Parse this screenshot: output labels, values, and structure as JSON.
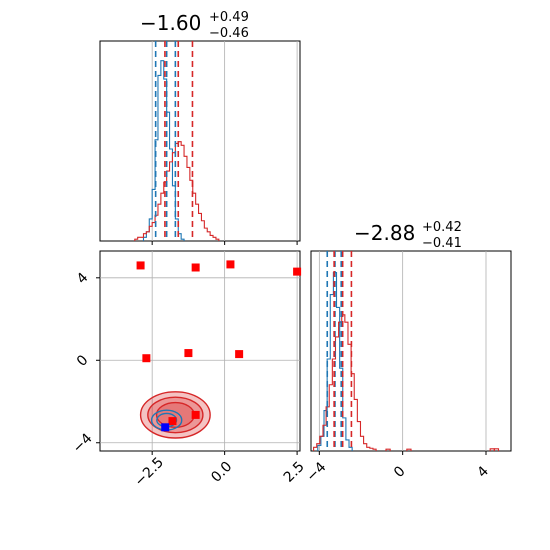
{
  "colors": {
    "series_a": "#1f77b4",
    "series_b": "#d62728",
    "marker": "#ff0000",
    "truth_marker": "#0000ff",
    "grid": "#b0b0b0"
  },
  "chart_data": [
    {
      "type": "histogram",
      "panel": "top-left",
      "title": {
        "value": "−1.60",
        "sup": "+0.49",
        "sub": "−0.46"
      },
      "xlim": [
        -4.3,
        2.6
      ],
      "xticks": [
        -2.5,
        0.0,
        2.5
      ],
      "grid": true,
      "quantile_lines": {
        "series_a": [
          -2.38,
          -2.0,
          -1.7
        ],
        "series_b": [
          -2.06,
          -1.6,
          -1.11
        ]
      },
      "series": [
        {
          "color_key": "series_a",
          "bin_width": 0.1,
          "x": [
            -2.75,
            -2.65,
            -2.55,
            -2.45,
            -2.35,
            -2.25,
            -2.15,
            -2.05,
            -1.95,
            -1.85,
            -1.75,
            -1.65,
            -1.55,
            -1.45
          ],
          "density": [
            0.02,
            0.05,
            0.12,
            0.28,
            0.55,
            0.9,
            0.98,
            0.88,
            0.7,
            0.5,
            0.3,
            0.12,
            0.04,
            0.01
          ]
        },
        {
          "color_key": "series_b",
          "bin_width": 0.1,
          "x": [
            -3.05,
            -2.95,
            -2.85,
            -2.75,
            -2.65,
            -2.55,
            -2.45,
            -2.35,
            -2.25,
            -2.15,
            -2.05,
            -1.95,
            -1.85,
            -1.75,
            -1.65,
            -1.55,
            -1.45,
            -1.35,
            -1.25,
            -1.15,
            -1.05,
            -0.95,
            -0.85,
            -0.75,
            -0.65,
            -0.55,
            -0.45,
            -0.35,
            -0.25
          ],
          "density": [
            0.01,
            0.02,
            0.02,
            0.04,
            0.05,
            0.08,
            0.1,
            0.14,
            0.2,
            0.26,
            0.32,
            0.38,
            0.43,
            0.48,
            0.53,
            0.54,
            0.52,
            0.46,
            0.4,
            0.33,
            0.26,
            0.2,
            0.15,
            0.11,
            0.07,
            0.05,
            0.03,
            0.02,
            0.01
          ]
        }
      ]
    },
    {
      "type": "scatter",
      "panel": "bottom-left",
      "xlim": [
        -4.3,
        2.6
      ],
      "ylim": [
        -4.4,
        5.3
      ],
      "xticks": [
        -2.5,
        0.0,
        2.5
      ],
      "yticks": [
        -4,
        0,
        4
      ],
      "grid": true,
      "contours": [
        {
          "color_key": "series_b",
          "center": [
            -1.7,
            -2.65
          ],
          "radii": [
            [
              1.2,
              1.12
            ],
            [
              0.95,
              0.86
            ],
            [
              0.65,
              0.6
            ]
          ],
          "filled": true
        },
        {
          "color_key": "series_a",
          "center": [
            -2.0,
            -2.9
          ],
          "radii": [
            [
              0.52,
              0.48
            ],
            [
              0.34,
              0.32
            ]
          ],
          "filled": false
        }
      ],
      "markers": [
        {
          "x": -2.9,
          "y": 4.6
        },
        {
          "x": -1.0,
          "y": 4.5
        },
        {
          "x": 0.2,
          "y": 4.65
        },
        {
          "x": 2.5,
          "y": 4.3
        },
        {
          "x": -2.7,
          "y": 0.1
        },
        {
          "x": -1.25,
          "y": 0.35
        },
        {
          "x": 0.5,
          "y": 0.3
        },
        {
          "x": -1.8,
          "y": -2.95
        },
        {
          "x": -1.0,
          "y": -2.65
        }
      ],
      "truth_marker": {
        "x": -2.05,
        "y": -3.25
      }
    },
    {
      "type": "histogram",
      "panel": "bottom-right",
      "title": {
        "value": "−2.88",
        "sup": "+0.42",
        "sub": "−0.41"
      },
      "xlim": [
        -4.4,
        5.2
      ],
      "xticks": [
        -4,
        0,
        4
      ],
      "grid": true,
      "quantile_lines": {
        "series_a": [
          -3.62,
          -3.25,
          -2.95
        ],
        "series_b": [
          -3.29,
          -2.88,
          -2.46
        ]
      },
      "series": [
        {
          "color_key": "series_a",
          "bin_width": 0.15,
          "x": [
            -4.0,
            -3.85,
            -3.7,
            -3.55,
            -3.4,
            -3.25,
            -3.1,
            -2.95,
            -2.8,
            -2.65,
            -2.5
          ],
          "density": [
            0.03,
            0.08,
            0.22,
            0.5,
            0.85,
            0.97,
            0.78,
            0.45,
            0.18,
            0.06,
            0.02
          ]
        },
        {
          "color_key": "series_b",
          "bin_width": 0.15,
          "x": [
            -4.2,
            -4.05,
            -3.9,
            -3.75,
            -3.6,
            -3.45,
            -3.3,
            -3.15,
            -3.0,
            -2.85,
            -2.7,
            -2.55,
            -2.4,
            -2.25,
            -2.1,
            -1.95,
            -1.8,
            -1.65,
            -1.5,
            -1.35
          ],
          "density": [
            0.02,
            0.04,
            0.08,
            0.14,
            0.24,
            0.36,
            0.5,
            0.62,
            0.7,
            0.74,
            0.7,
            0.58,
            0.42,
            0.28,
            0.16,
            0.08,
            0.04,
            0.02,
            0.015,
            0.01
          ]
        }
      ],
      "outlier_bins": [
        {
          "x": -0.7,
          "density": 0.01
        },
        {
          "x": 0.3,
          "density": 0.01
        },
        {
          "x": 4.3,
          "density": 0.012
        },
        {
          "x": 4.5,
          "density": 0.012
        }
      ]
    }
  ]
}
